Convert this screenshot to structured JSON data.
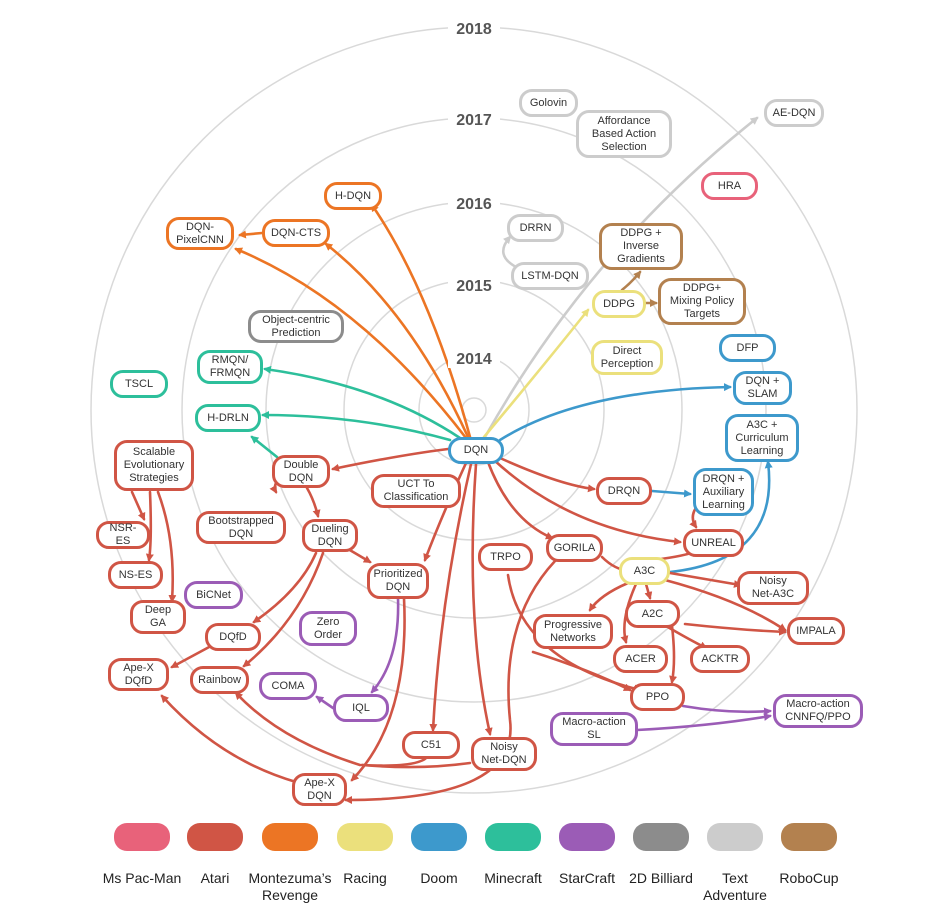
{
  "colors": {
    "mspacman": "#e8627a",
    "atari": "#d05545",
    "montezuma": "#ec7524",
    "racing": "#ebe07c",
    "doom": "#3d99cc",
    "minecraft": "#2dbf9b",
    "starcraft": "#9b5cb6",
    "billiard": "#8c8c8c",
    "text": "#cccccc",
    "robocup": "#b3814f"
  },
  "years": [
    "2014",
    "2015",
    "2016",
    "2017",
    "2018"
  ],
  "nodes": {
    "dqn": "DQN",
    "golovin": "Golovin",
    "affordance": "Affordance\nBased Action\nSelection",
    "ae_dqn": "AE-DQN",
    "hra": "HRA",
    "h_dqn": "H-DQN",
    "dqn_pixelcnn": "DQN-\nPixelCNN",
    "dqn_cts": "DQN-CTS",
    "drrn": "DRRN",
    "lstm_dqn": "LSTM-DQN",
    "ddpg_inverse": "DDPG +\nInverse\nGradients",
    "ddpg": "DDPG",
    "ddpg_mixing": "DDPG+\nMixing Policy\nTargets",
    "object_centric": "Object-centric\nPrediction",
    "direct_perception": "Direct\nPerception",
    "rmqn": "RMQN/\nFRMQN",
    "dfp": "DFP",
    "tscl": "TSCL",
    "dqn_slam": "DQN +\nSLAM",
    "h_drln": "H-DRLN",
    "a3c_curriculum": "A3C +\nCurriculum\nLearning",
    "scalable_es": "Scalable\nEvolutionary\nStrategies",
    "double_dqn": "Double\nDQN",
    "uct": "UCT To\nClassification",
    "drqn": "DRQN",
    "drqn_aux": "DRQN +\nAuxiliary\nLearning",
    "bootstrapped": "Bootstrapped\nDQN",
    "nsr_es": "NSR-ES",
    "dueling": "Dueling\nDQN",
    "trpo": "TRPO",
    "gorila": "GORILA",
    "unreal": "UNREAL",
    "ns_es": "NS-ES",
    "prioritized": "Prioritized\nDQN",
    "a3c": "A3C",
    "noisy_a3c": "Noisy\nNet-A3C",
    "bicnet": "BiCNet",
    "deep_ga": "Deep\nGA",
    "zero_order": "Zero\nOrder",
    "progressive": "Progressive\nNetworks",
    "a2c": "A2C",
    "impala": "IMPALA",
    "dqfd": "DQfD",
    "acer": "ACER",
    "acktr": "ACKTR",
    "apex_dqfd": "Ape-X\nDQfD",
    "rainbow": "Rainbow",
    "coma": "COMA",
    "ppo": "PPO",
    "macro_cnnfq": "Macro-action\nCNNFQ/PPO",
    "iql": "IQL",
    "macro_sl": "Macro-action\nSL",
    "c51": "C51",
    "noisy_dqn": "Noisy\nNet-DQN",
    "apex_dqn": "Ape-X\nDQN"
  },
  "legend": [
    {
      "label": "Ms Pac-Man",
      "color": "#e8627a"
    },
    {
      "label": "Atari",
      "color": "#d05545"
    },
    {
      "label": "Montezuma’s\nRevenge",
      "color": "#ec7524"
    },
    {
      "label": "Racing",
      "color": "#ebe07c"
    },
    {
      "label": "Doom",
      "color": "#3d99cc"
    },
    {
      "label": "Minecraft",
      "color": "#2dbf9b"
    },
    {
      "label": "StarCraft",
      "color": "#9b5cb6"
    },
    {
      "label": "2D Billiard",
      "color": "#8c8c8c"
    },
    {
      "label": "Text\nAdventure",
      "color": "#cccccc"
    },
    {
      "label": "RoboCup",
      "color": "#b3814f"
    }
  ]
}
